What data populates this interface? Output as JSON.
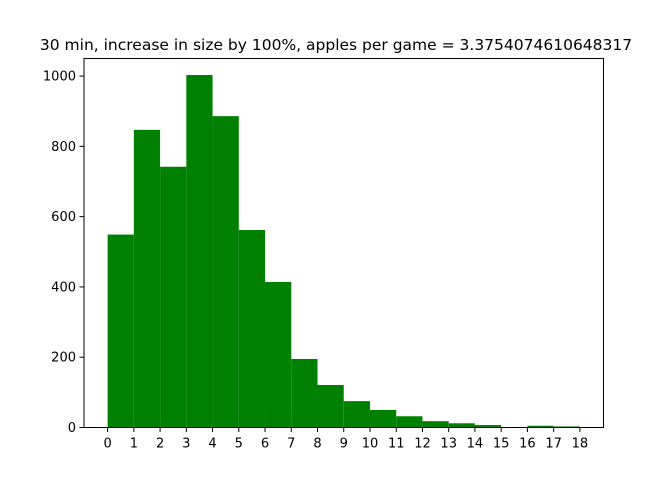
{
  "chart_data": {
    "type": "bar",
    "title": "30 min, increase in size by 100%, apples per game = 3.3754074610648317",
    "xlabel": "",
    "ylabel": "",
    "bar_color": "#008000",
    "x_ticks": [
      "0",
      "1",
      "2",
      "3",
      "4",
      "5",
      "6",
      "7",
      "8",
      "9",
      "10",
      "11",
      "12",
      "13",
      "14",
      "15",
      "16",
      "17",
      "18"
    ],
    "y_ticks": [
      "0",
      "200",
      "400",
      "600",
      "800",
      "1000"
    ],
    "xlim": [
      -0.9,
      18.9
    ],
    "ylim": [
      0,
      1050
    ],
    "bins": [
      {
        "start": 0,
        "end": 1,
        "value": 549
      },
      {
        "start": 1,
        "end": 2,
        "value": 847
      },
      {
        "start": 2,
        "end": 3,
        "value": 742
      },
      {
        "start": 3,
        "end": 4,
        "value": 1003
      },
      {
        "start": 4,
        "end": 5,
        "value": 886
      },
      {
        "start": 5,
        "end": 6,
        "value": 562
      },
      {
        "start": 6,
        "end": 7,
        "value": 414
      },
      {
        "start": 7,
        "end": 8,
        "value": 195
      },
      {
        "start": 8,
        "end": 9,
        "value": 121
      },
      {
        "start": 9,
        "end": 10,
        "value": 75
      },
      {
        "start": 10,
        "end": 11,
        "value": 50
      },
      {
        "start": 11,
        "end": 12,
        "value": 32
      },
      {
        "start": 12,
        "end": 13,
        "value": 18
      },
      {
        "start": 13,
        "end": 14,
        "value": 12
      },
      {
        "start": 14,
        "end": 15,
        "value": 7
      },
      {
        "start": 15,
        "end": 16,
        "value": 0
      },
      {
        "start": 16,
        "end": 17,
        "value": 5
      },
      {
        "start": 17,
        "end": 18,
        "value": 3
      }
    ],
    "grid": false,
    "legend": "none"
  }
}
